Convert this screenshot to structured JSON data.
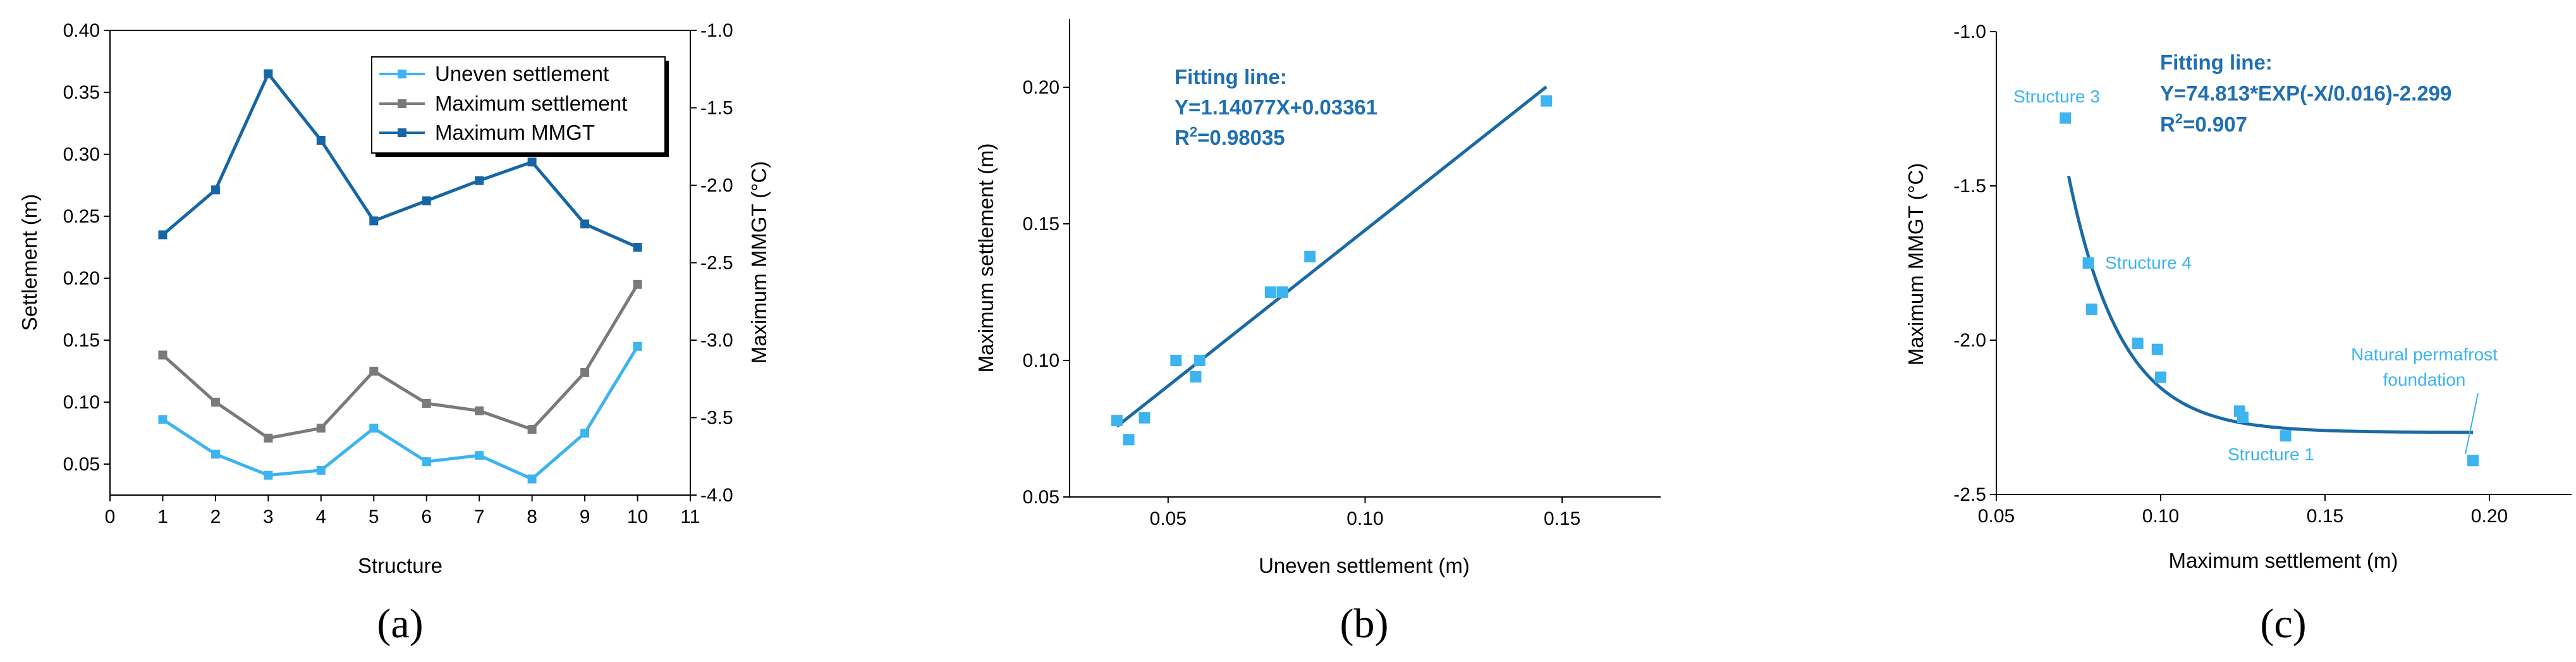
{
  "colors": {
    "light_blue": "#3db3f0",
    "gray": "#7a7a7a",
    "dark_blue": "#1666a6",
    "fit_blue": "#1a6aa6",
    "annot_blue": "#1f6fb2"
  },
  "chart_data": [
    {
      "id": "a",
      "type": "line",
      "panel_label": "(a)",
      "xlabel": "Structure",
      "ylabel": "Settlement (m)",
      "y2label": "Maximum MMGT (°C)",
      "xlim": [
        0,
        11
      ],
      "ylim": [
        0.025,
        0.4
      ],
      "y2lim": [
        -4.0,
        -1.0
      ],
      "x_ticks": [
        0,
        1,
        2,
        3,
        4,
        5,
        6,
        7,
        8,
        9,
        10,
        11
      ],
      "y_ticks": [
        0.05,
        0.1,
        0.15,
        0.2,
        0.25,
        0.3,
        0.35,
        0.4
      ],
      "y_tick_labels": [
        "0.05",
        "0.10",
        "0.15",
        "0.20",
        "0.25",
        "0.30",
        "0.35",
        "0.40"
      ],
      "y2_ticks": [
        -4.0,
        -3.5,
        -3.0,
        -2.5,
        -2.0,
        -1.5,
        -1.0
      ],
      "y2_tick_labels": [
        "-4.0",
        "-3.5",
        "-3.0",
        "-2.5",
        "-2.0",
        "-1.5",
        "-1.0"
      ],
      "legend_position": "top-right",
      "x": [
        1,
        2,
        3,
        4,
        5,
        6,
        7,
        8,
        9,
        10
      ],
      "series": [
        {
          "name": "Uneven settlement",
          "axis": "left",
          "color": "#3db3f0",
          "values": [
            0.086,
            0.058,
            0.041,
            0.045,
            0.079,
            0.052,
            0.057,
            0.038,
            0.075,
            0.145
          ]
        },
        {
          "name": "Maximum settlement",
          "axis": "left",
          "color": "#7a7a7a",
          "values": [
            0.138,
            0.1,
            0.071,
            0.079,
            0.125,
            0.099,
            0.093,
            0.078,
            0.124,
            0.195
          ]
        },
        {
          "name": "Maximum MMGT",
          "axis": "right",
          "color": "#1666a6",
          "values": [
            -2.32,
            -2.03,
            -1.28,
            -1.71,
            -2.23,
            -2.1,
            -1.97,
            -1.85,
            -2.25,
            -2.4
          ]
        }
      ]
    },
    {
      "id": "b",
      "type": "scatter",
      "panel_label": "(b)",
      "xlabel": "Uneven settlement (m)",
      "ylabel": "Maximum settlement (m)",
      "xlim": [
        0.025,
        0.175
      ],
      "ylim": [
        0.05,
        0.225
      ],
      "x_ticks": [
        0.05,
        0.1,
        0.15
      ],
      "x_tick_labels": [
        "0.05",
        "0.10",
        "0.15"
      ],
      "y_ticks": [
        0.05,
        0.1,
        0.15,
        0.2
      ],
      "y_tick_labels": [
        "0.05",
        "0.10",
        "0.15",
        "0.20"
      ],
      "points": {
        "x": [
          0.037,
          0.04,
          0.044,
          0.052,
          0.057,
          0.058,
          0.076,
          0.079,
          0.086,
          0.146
        ],
        "y": [
          0.078,
          0.071,
          0.079,
          0.1,
          0.094,
          0.1,
          0.125,
          0.125,
          0.138,
          0.195
        ]
      },
      "fit": {
        "slope": 1.14077,
        "intercept": 0.03361,
        "x_range": [
          0.037,
          0.146
        ]
      },
      "annotation": {
        "title": "Fitting line:",
        "equation": "Y=1.14077X+0.03361",
        "r2_prefix": "R",
        "r2_sup": "2",
        "r2_value": "=0.98035"
      }
    },
    {
      "id": "c",
      "type": "scatter",
      "panel_label": "(c)",
      "xlabel": "Maximum settlement (m)",
      "ylabel": "Maximum MMGT (°C)",
      "xlim": [
        0.05,
        0.225
      ],
      "ylim": [
        -2.5,
        -1.0
      ],
      "x_ticks": [
        0.05,
        0.1,
        0.15,
        0.2
      ],
      "x_tick_labels": [
        "0.05",
        "0.10",
        "0.15",
        "0.20"
      ],
      "y_ticks": [
        -2.5,
        -2.0,
        -1.5,
        -1.0
      ],
      "y_tick_labels": [
        "-2.5",
        "-2.0",
        "-1.5",
        "-1.0"
      ],
      "points": {
        "x": [
          0.071,
          0.078,
          0.079,
          0.093,
          0.099,
          0.1,
          0.124,
          0.125,
          0.138,
          0.195
        ],
        "y": [
          -1.28,
          -1.75,
          -1.9,
          -2.01,
          -2.03,
          -2.12,
          -2.23,
          -2.25,
          -2.31,
          -2.39
        ]
      },
      "fit": {
        "A": 74.813,
        "t": 0.016,
        "y0": -2.299,
        "x_range": [
          0.072,
          0.195
        ]
      },
      "annotation": {
        "title": "Fitting line:",
        "equation": "Y=74.813*EXP(-X/0.016)-2.299",
        "r2_prefix": "R",
        "r2_sup": "2",
        "r2_value": "=0.907"
      },
      "labels": {
        "structure3": "Structure 3",
        "structure4": "Structure 4",
        "structure1": "Structure 1",
        "natural_line1": "Natural permafrost",
        "natural_line2": "foundation"
      }
    }
  ]
}
